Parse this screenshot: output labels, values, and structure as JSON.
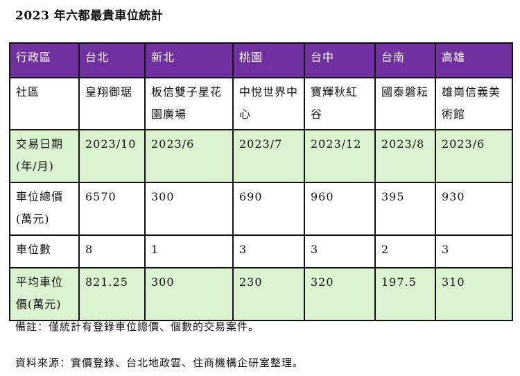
{
  "title": "2023 年六都最貴車位統計",
  "colors": {
    "header_bg": "#7030a0",
    "highlight_row_bg": "#daf2d0"
  },
  "table": {
    "header": [
      "行政區",
      "台北",
      "新北",
      "桃園",
      "台中",
      "台南",
      "高雄"
    ],
    "rows": [
      {
        "label": "社區",
        "values": [
          "皇翔御琚",
          "板信雙子星花園廣場",
          "中悅世界中心",
          "寶輝秋紅谷",
          "國泰磐耘",
          "雄崗信義美術館"
        ]
      },
      {
        "label": "交易日期(年/月)",
        "values": [
          "2023/10",
          "2023/6",
          "2023/7",
          "2023/12",
          "2023/8",
          "2023/6"
        ]
      },
      {
        "label": "車位總價(萬元)",
        "values": [
          "6570",
          "300",
          "690",
          "960",
          "395",
          "930"
        ]
      },
      {
        "label": "車位數",
        "values": [
          "8",
          "1",
          "3",
          "3",
          "2",
          "3"
        ]
      },
      {
        "label": "平均車位價(萬元)",
        "values": [
          "821.25",
          "300",
          "230",
          "320",
          "197.5",
          "310"
        ]
      }
    ]
  },
  "note": "備註：僅統計有登錄車位總價、個數的交易案件。",
  "source": "資料來源：實價登錄、台北地政雲、住商機構企研室整理。"
}
